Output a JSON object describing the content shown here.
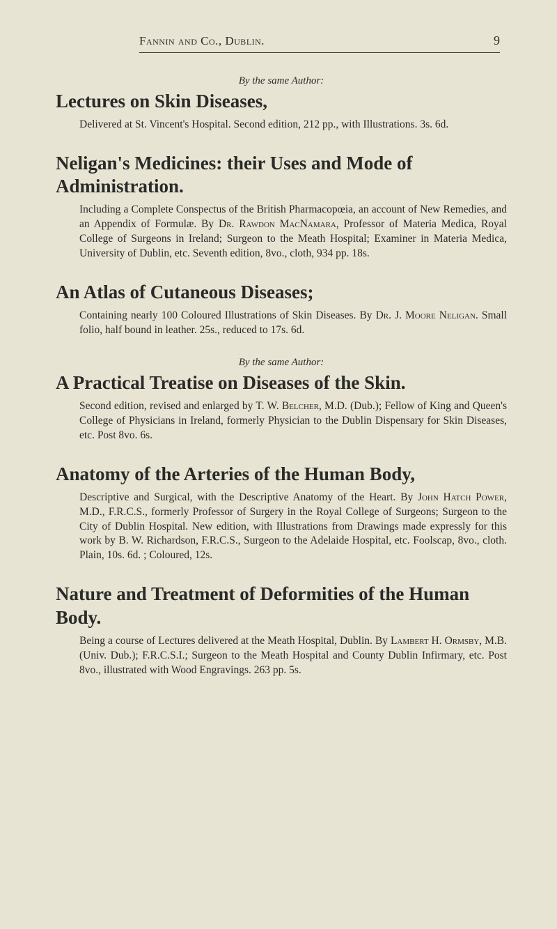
{
  "page": {
    "running_head": "Fannin and Co., Dublin.",
    "number": "9"
  },
  "entries": [
    {
      "byline": "By the same Author:",
      "title": "Lectures on Skin Diseases,",
      "desc_parts": [
        {
          "text": "Delivered at St. Vincent's Hospital. Second edition, 212 pp., with Illustrations. 3s. 6d."
        }
      ]
    },
    {
      "title": "Neligan's Medicines: their Uses and Mode of Administration.",
      "desc_parts": [
        {
          "text": "Including a Complete Conspectus of the British Pharmacopœia, an account of New Remedies, and an Appendix of Formulæ. By "
        },
        {
          "text": "Dr. Rawdon MacNamara",
          "smallcaps": true
        },
        {
          "text": ", Professor of Materia Medica, Royal College of Surgeons in Ireland; Surgeon to the Meath Hospital; Examiner in Materia Medica, University of Dublin, etc. Seventh edition, 8vo., cloth, 934 pp. 18s."
        }
      ]
    },
    {
      "title": "An Atlas of Cutaneous Diseases;",
      "desc_parts": [
        {
          "text": "Containing nearly 100 Coloured Illustrations of Skin Diseases. By "
        },
        {
          "text": "Dr. J. Moore Neligan",
          "smallcaps": true
        },
        {
          "text": ". Small folio, half bound in leather. 25s., reduced to 17s. 6d."
        }
      ]
    },
    {
      "byline": "By the same Author:",
      "title": "A Practical Treatise on Diseases of the Skin.",
      "desc_parts": [
        {
          "text": "Second edition, revised and enlarged by T. W. "
        },
        {
          "text": "Belcher",
          "smallcaps": true
        },
        {
          "text": ", M.D. (Dub.); Fellow of King and Queen's College of Physicians in Ireland, formerly Physician to the Dublin Dispensary for Skin Diseases, etc. Post 8vo. 6s."
        }
      ]
    },
    {
      "title": "Anatomy of the Arteries of the Human Body,",
      "desc_parts": [
        {
          "text": "Descriptive and Surgical, with the Descriptive Anatomy of the Heart. By "
        },
        {
          "text": "John Hatch Power",
          "smallcaps": true
        },
        {
          "text": ", M.D., F.R.C.S., formerly Professor of Surgery in the Royal College of Surgeons; Surgeon to the City of Dublin Hospital. New edition, with Illustrations from Drawings made expressly for this work by B. W. Richardson, F.R.C.S., Surgeon to the Adelaide Hospital, etc. Foolscap, 8vo., cloth. Plain, 10s. 6d. ; Coloured, 12s."
        }
      ]
    },
    {
      "title": "Nature and Treatment of Deformities of the Human Body.",
      "desc_parts": [
        {
          "text": "Being a course of Lectures delivered at the Meath Hospital, Dublin. By "
        },
        {
          "text": "Lambert H. Ormsby",
          "smallcaps": true
        },
        {
          "text": ", M.B. (Univ. Dub.); F.R.C.S.I.; Surgeon to the Meath Hospital and County Dublin Infirmary, etc. Post 8vo., illustrated with Wood Engravings. 263 pp. 5s."
        }
      ]
    }
  ]
}
